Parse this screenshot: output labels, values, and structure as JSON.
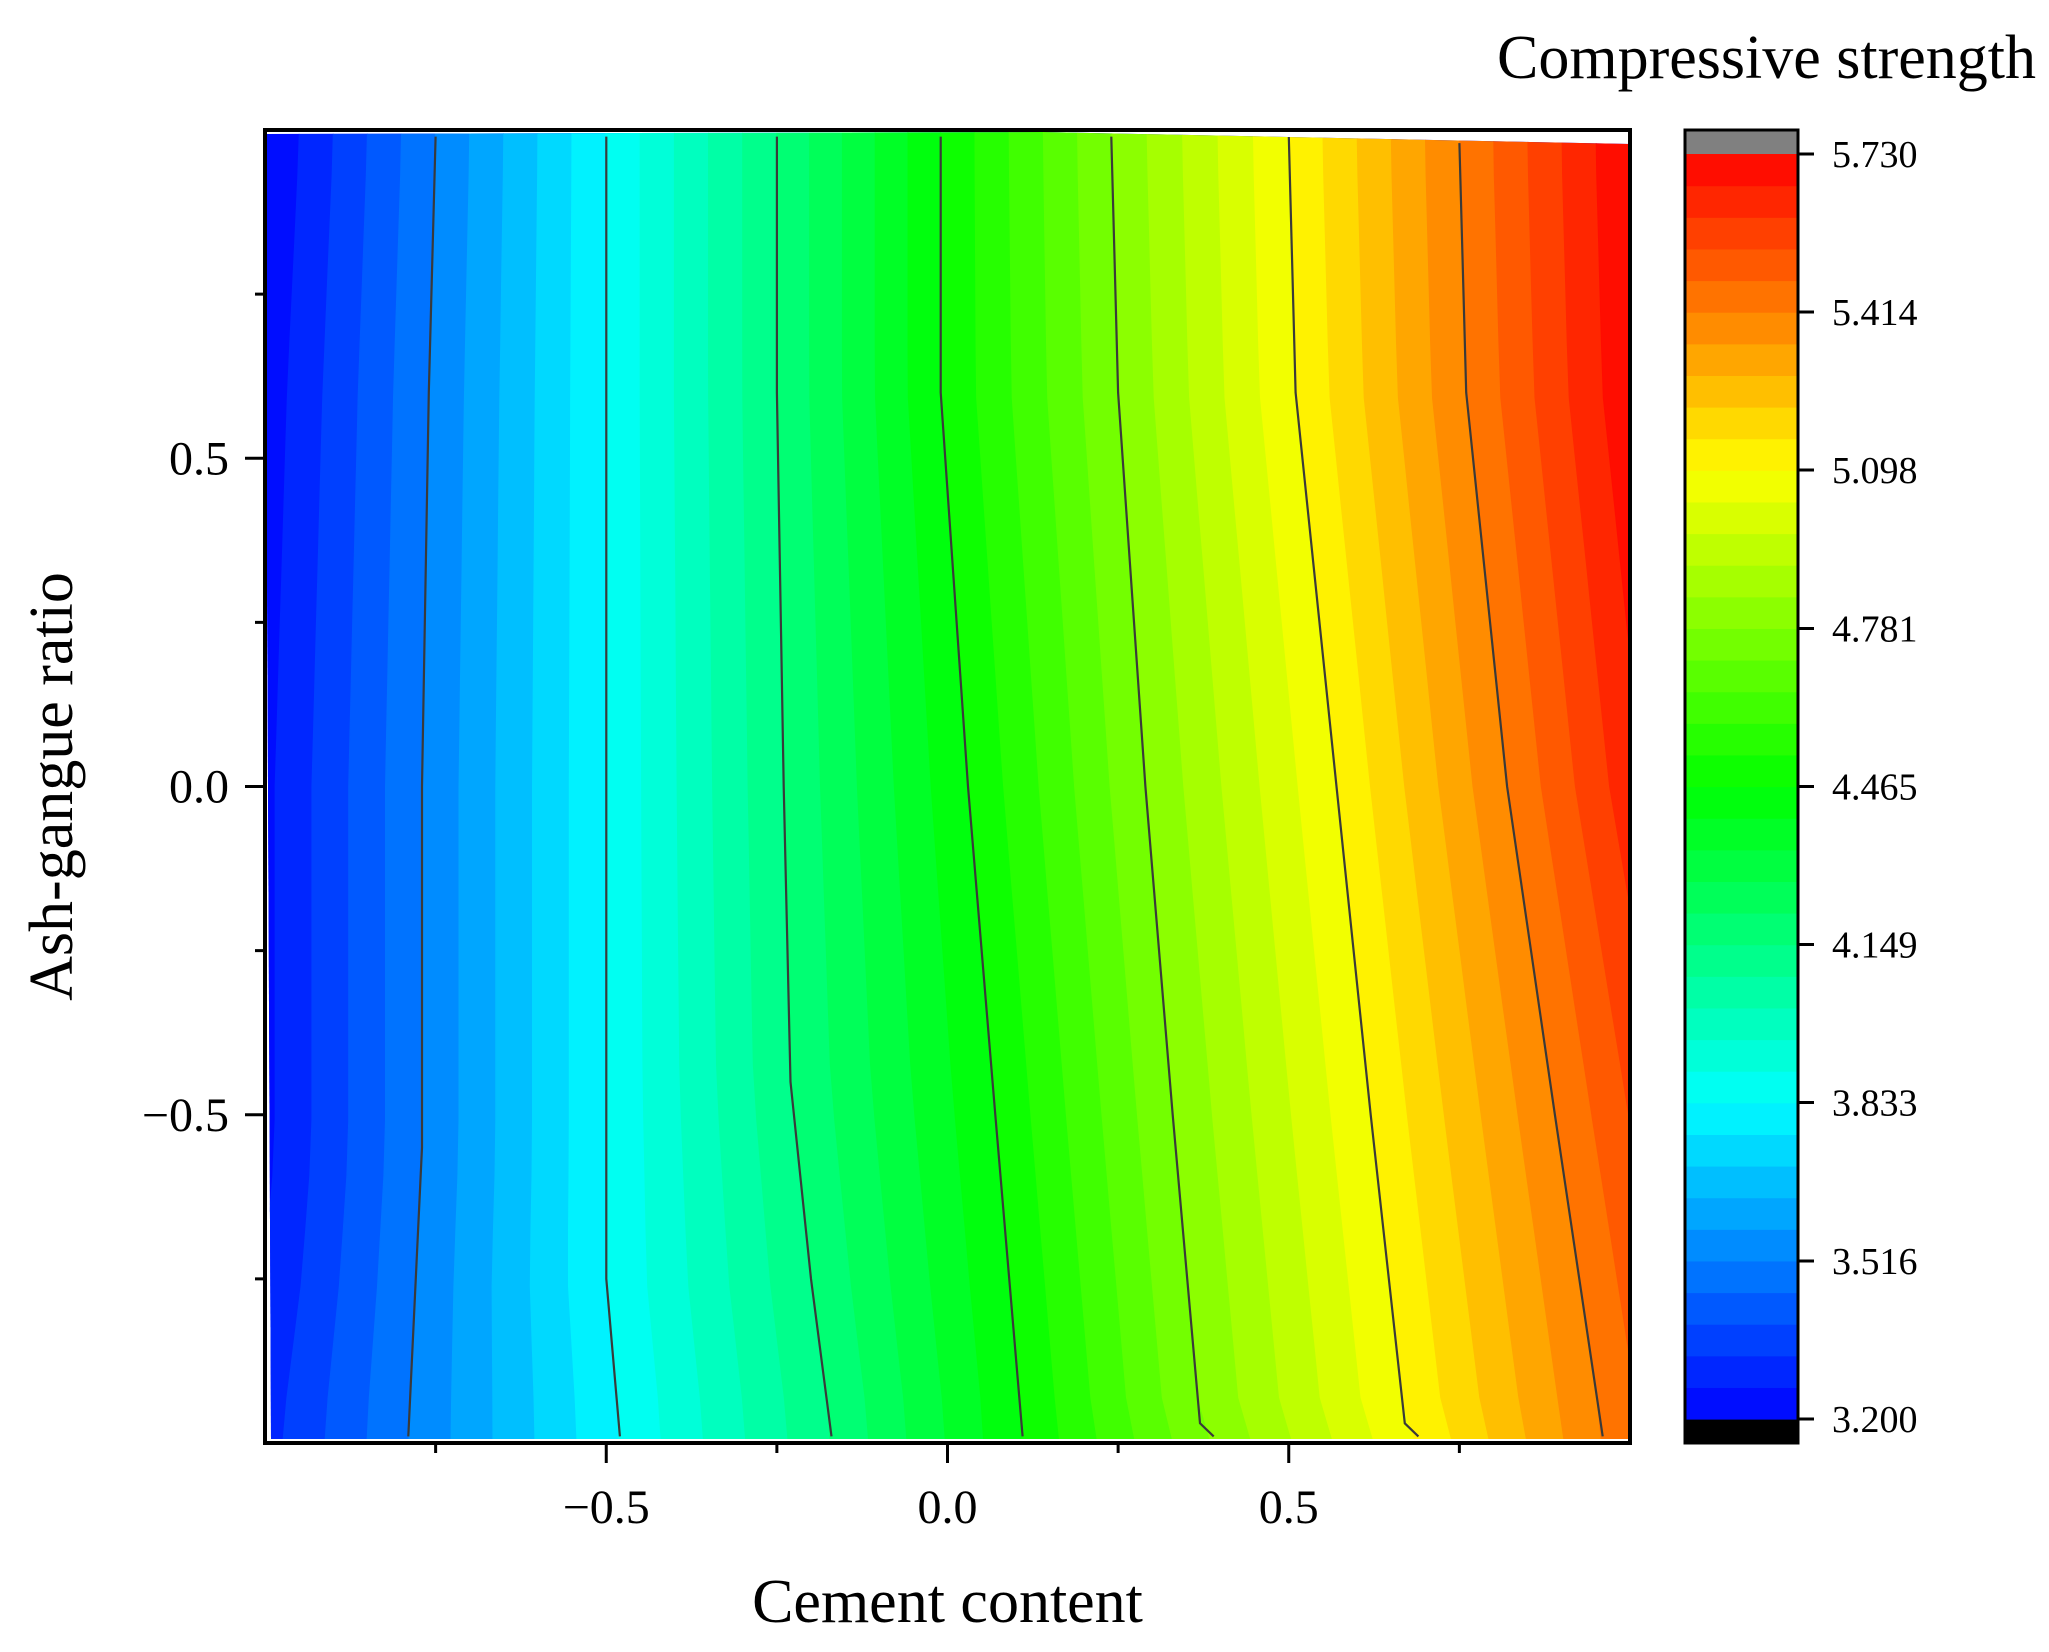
{
  "chart_data": {
    "type": "heatmap",
    "subtype": "filled-contour",
    "title": "",
    "xlabel": "Cement content",
    "ylabel": "Ash-gangue ratio",
    "xlim": [
      -1,
      1
    ],
    "ylim": [
      -1,
      1
    ],
    "x_ticks": [
      -0.5,
      0.0,
      0.5
    ],
    "x_tick_labels": [
      "−0.5",
      "0.0",
      "0.5"
    ],
    "y_ticks": [
      -0.5,
      0.0,
      0.5
    ],
    "y_tick_labels": [
      "−0.5",
      "0.0",
      "0.5"
    ],
    "grid": false,
    "colorbar": {
      "title": "Compressive strength",
      "min": 3.2,
      "max": 5.73,
      "ticks": [
        3.2,
        3.516,
        3.833,
        4.149,
        4.465,
        4.781,
        5.098,
        5.414,
        5.73
      ],
      "tick_labels": [
        "3.200",
        "3.516",
        "3.833",
        "4.149",
        "4.465",
        "4.781",
        "5.098",
        "5.414",
        "5.730"
      ],
      "levels": 40,
      "under_color": "#000000",
      "over_color": "#808080",
      "colormap": [
        "#0000ff",
        "#00ffff",
        "#00ff00",
        "#ffff00",
        "#ff0000"
      ]
    },
    "contour_lines": [
      {
        "level": 3.516,
        "points": [
          [
            -0.75,
            0.99
          ],
          [
            -0.76,
            0.6
          ],
          [
            -0.77,
            0.0
          ],
          [
            -0.77,
            -0.55
          ],
          [
            -0.79,
            -0.99
          ]
        ]
      },
      {
        "level": 3.833,
        "points": [
          [
            -0.5,
            0.99
          ],
          [
            -0.5,
            0.6
          ],
          [
            -0.5,
            0.0
          ],
          [
            -0.5,
            -0.55
          ],
          [
            -0.5,
            -0.75
          ],
          [
            -0.48,
            -0.99
          ]
        ]
      },
      {
        "level": 4.149,
        "points": [
          [
            -0.25,
            0.99
          ],
          [
            -0.25,
            0.6
          ],
          [
            -0.24,
            0.0
          ],
          [
            -0.23,
            -0.45
          ],
          [
            -0.2,
            -0.75
          ],
          [
            -0.17,
            -0.99
          ]
        ]
      },
      {
        "level": 4.465,
        "points": [
          [
            -0.01,
            0.99
          ],
          [
            -0.01,
            0.6
          ],
          [
            0.03,
            0.0
          ],
          [
            0.07,
            -0.5
          ],
          [
            0.11,
            -0.99
          ]
        ]
      },
      {
        "level": 4.781,
        "points": [
          [
            0.24,
            0.99
          ],
          [
            0.25,
            0.6
          ],
          [
            0.29,
            0.0
          ],
          [
            0.33,
            -0.5
          ],
          [
            0.37,
            -0.97
          ],
          [
            0.39,
            -0.99
          ]
        ]
      },
      {
        "level": 5.098,
        "points": [
          [
            0.5,
            0.99
          ],
          [
            0.51,
            0.6
          ],
          [
            0.57,
            0.0
          ],
          [
            0.62,
            -0.5
          ],
          [
            0.67,
            -0.97
          ],
          [
            0.69,
            -0.99
          ]
        ]
      },
      {
        "level": 5.414,
        "points": [
          [
            0.75,
            0.98
          ],
          [
            0.76,
            0.6
          ],
          [
            0.82,
            0.0
          ],
          [
            0.89,
            -0.5
          ],
          [
            0.96,
            -0.99
          ]
        ]
      }
    ]
  }
}
